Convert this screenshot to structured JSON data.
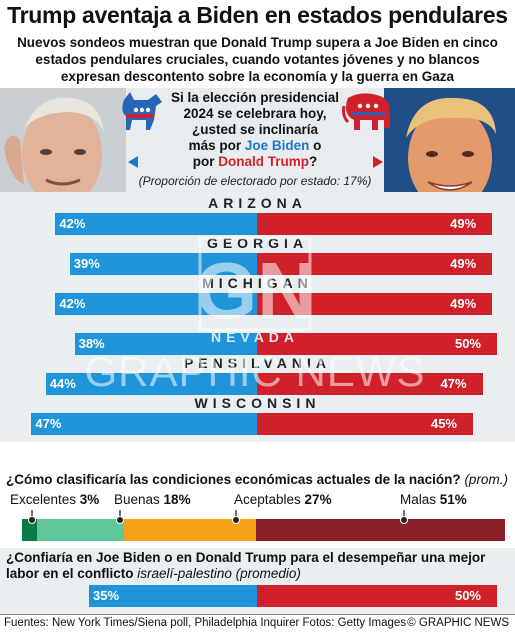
{
  "title": "Trump aventaja a Biden en estados pendulares",
  "subtitle": "Nuevos sondeos muestran que Donald Trump supera a Joe Biden en cinco estados pendulares cruciales, cuando votantes jóvenes y no blancos expresan descontento sobre la economía y la guerra en Gaza",
  "question": {
    "line1": "Si la elección presidencial",
    "line2": "2024 se celebrara hoy,",
    "line3": "¿usted se inclinaría",
    "line4_prefix": "más por ",
    "biden": "Joe Biden",
    "line4_suffix": " o",
    "line5_prefix": "por ",
    "trump": "Donald Trump",
    "line5_suffix": "?"
  },
  "proportion_note": "(Proporción de electorado por estado: 17%)",
  "colors": {
    "biden": "#1f94d9",
    "trump": "#d0212a",
    "excelentes": "#0a7a47",
    "buenas": "#5fc79a",
    "aceptables": "#f5a21b",
    "malas": "#8c2028"
  },
  "chart_data": [
    {
      "type": "bar",
      "orientation": "horizontal-diverging",
      "categories": [
        "ARIZONA",
        "GEORGIA",
        "MICHIGAN",
        "NEVADA",
        "PENSILVANIA",
        "WISCONSIN"
      ],
      "series": [
        {
          "name": "Joe Biden",
          "values": [
            42,
            39,
            42,
            38,
            44,
            47
          ]
        },
        {
          "name": "Donald Trump",
          "values": [
            49,
            49,
            49,
            50,
            47,
            45
          ]
        }
      ],
      "value_labels_biden": [
        "42%",
        "39%",
        "42%",
        "38%",
        "44%",
        "47%"
      ],
      "value_labels_trump": [
        "49%",
        "49%",
        "49%",
        "50%",
        "47%",
        "45%"
      ]
    },
    {
      "type": "bar",
      "orientation": "stacked-horizontal",
      "title": "¿Cómo clasificaría las condiciones económicas actuales de la nación?",
      "note": "(prom.)",
      "categories": [
        "Excelentes",
        "Buenas",
        "Aceptables",
        "Malas"
      ],
      "values": [
        3,
        18,
        27,
        51
      ],
      "value_labels": [
        "3%",
        "18%",
        "27%",
        "51%"
      ]
    },
    {
      "type": "bar",
      "orientation": "horizontal-diverging",
      "title": "¿Confiaría en Joe Biden o en Donald Trump para el desempeñar una mejor labor en el conflicto",
      "note": "israelí-palestino (promedio)",
      "series": [
        {
          "name": "Joe Biden",
          "values": [
            35
          ]
        },
        {
          "name": "Donald Trump",
          "values": [
            50
          ]
        }
      ],
      "value_labels_biden": [
        "35%"
      ],
      "value_labels_trump": [
        "50%"
      ]
    }
  ],
  "watermark": {
    "logo": "GN",
    "word1": "NEVADA",
    "word2": "GRAPHIC NEWS"
  },
  "footer": {
    "sources": "Fuentes: New York Times/Siena poll, Philadelphia Inquirer  Fotos: Getty Images",
    "credit": "© GRAPHIC NEWS"
  }
}
